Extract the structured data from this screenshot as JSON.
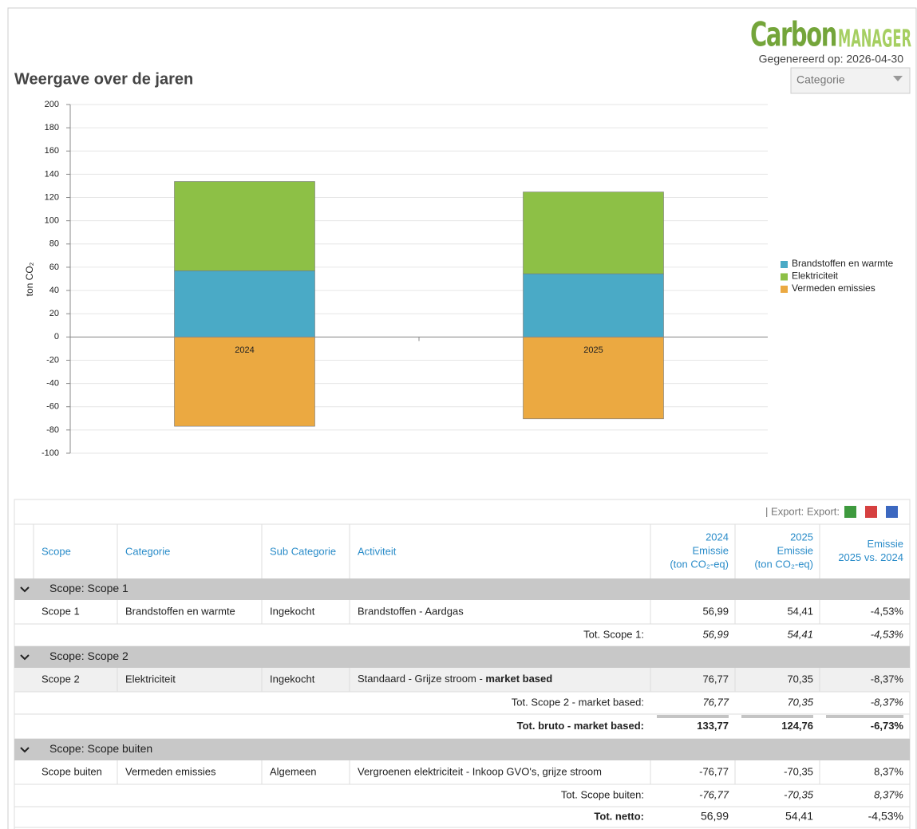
{
  "header": {
    "logo_1": "Carbon",
    "logo_2": "MANAGER",
    "generated": "Gegenereerd op: 2026-04-30",
    "dropdown": "Categorie"
  },
  "chart_data": {
    "type": "bar",
    "stacked": true,
    "title": "Weergave over de jaren",
    "ylabel": "ton CO₂",
    "categories": [
      "2024",
      "2025"
    ],
    "series": [
      {
        "name": "Brandstoffen en warmte",
        "color": "#4aaac6",
        "values": [
          56.99,
          54.41
        ]
      },
      {
        "name": "Elektriciteit",
        "color": "#8dc046",
        "values": [
          76.77,
          70.35
        ]
      },
      {
        "name": "Vermeden emissies",
        "color": "#eba941",
        "values": [
          -76.77,
          -70.35
        ]
      }
    ],
    "ylim": [
      -100,
      200
    ],
    "yticks": [
      -100,
      -80,
      -60,
      -40,
      -20,
      0,
      20,
      40,
      60,
      80,
      100,
      120,
      140,
      160,
      180,
      200
    ],
    "grid": true,
    "legend": "right"
  },
  "table": {
    "export": "| Export: Export:",
    "headers": [
      "Scope",
      "Categorie",
      "Sub Categorie",
      "Activiteit",
      [
        "2024",
        "Emissie",
        "(ton CO₂-eq)"
      ],
      [
        "2025",
        "Emissie",
        "(ton CO₂-eq)"
      ],
      [
        "Emissie",
        "2025 vs. 2024"
      ]
    ],
    "sections": [
      {
        "group": "Scope: Scope 1",
        "rows": [
          [
            "Scope 1",
            "Brandstoffen en warmte",
            "Ingekocht",
            "Brandstoffen - Aardgas",
            "56,99",
            "54,41",
            "-4,53%"
          ]
        ],
        "total": {
          "label": "Tot. Scope 1:",
          "values": [
            "56,99",
            "54,41",
            "-4,53%"
          ]
        }
      },
      {
        "group": "Scope: Scope 2",
        "rows": [
          [
            "Scope 2",
            "Elektriciteit",
            "Ingekocht",
            {
              "text": "Standaard - Grijze stroom - ",
              "bold": "market based"
            },
            "76,77",
            "70,35",
            "-8,37%"
          ]
        ],
        "total": {
          "label": "Tot. Scope 2 - market based:",
          "values": [
            "76,77",
            "70,35",
            "-8,37%"
          ]
        },
        "grand_total": {
          "label": "Tot. bruto - market based:",
          "values": [
            "133,77",
            "124,76",
            "-6,73%"
          ]
        }
      },
      {
        "group": "Scope: Scope buiten",
        "rows": [
          [
            "Scope buiten",
            "Vermeden emissies",
            "Algemeen",
            "Vergroenen elektriciteit - Inkoop GVO's, grijze stroom",
            "-76,77",
            "-70,35",
            "8,37%"
          ]
        ],
        "total": {
          "label": "Tot. Scope buiten:",
          "values": [
            "-76,77",
            "-70,35",
            "8,37%"
          ]
        }
      }
    ],
    "netto": {
      "label": "Tot. netto:",
      "values": [
        "56,99",
        "54,41",
        "-4,53%"
      ]
    }
  }
}
